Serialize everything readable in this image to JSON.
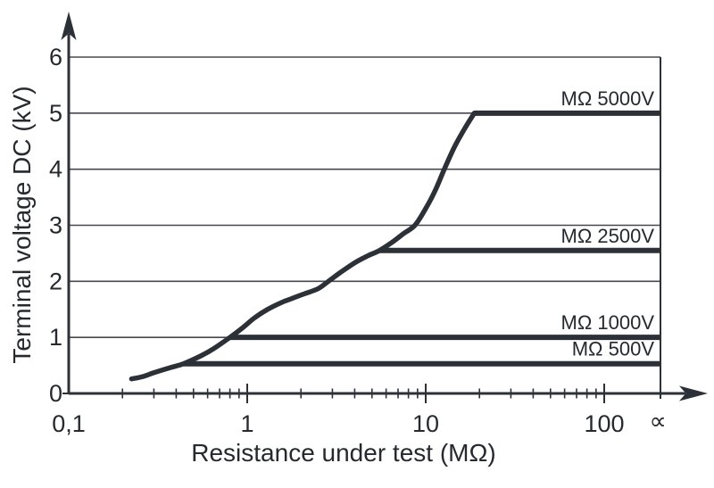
{
  "figure": {
    "background": "#ffffff"
  },
  "colors": {
    "line": "#2c3037",
    "grid": "#45484e",
    "text": "#26292e"
  },
  "chart_data": {
    "type": "line",
    "title": "",
    "xlabel": "Resistance under test (MΩ)",
    "ylabel": "Terminal voltage DC (kV)",
    "x_scale": "log",
    "xlim": [
      0.1,
      206
    ],
    "ylim": [
      0,
      6
    ],
    "grid": "horizontal",
    "legend_position": "inline-right",
    "x_ticks": [
      {
        "value": 0.1,
        "label": "0,1",
        "tick": false
      },
      {
        "value": 1,
        "label": "1",
        "tick": true
      },
      {
        "value": 10,
        "label": "10",
        "tick": true
      },
      {
        "value": 100,
        "label": "100",
        "tick": true
      },
      {
        "value": 200,
        "label": "∝",
        "tick": false
      }
    ],
    "x_minor_tick_decades": [
      0.1,
      1,
      10
    ],
    "y_ticks": [
      {
        "value": 0,
        "label": "0"
      },
      {
        "value": 1,
        "label": "1"
      },
      {
        "value": 2,
        "label": "2"
      },
      {
        "value": 3,
        "label": "3"
      },
      {
        "value": 4,
        "label": "4"
      },
      {
        "value": 5,
        "label": "5"
      },
      {
        "value": 6,
        "label": "6"
      }
    ],
    "series": [
      {
        "label": "MΩ 5000V",
        "plateau_kv": 5.0,
        "plateau_from_mohm": 18.7,
        "plateau_to": "infinity"
      },
      {
        "label": "MΩ 2500V",
        "plateau_kv": 2.55,
        "plateau_from_mohm": 5.5,
        "plateau_to": "infinity"
      },
      {
        "label": "MΩ 1000V",
        "plateau_kv": 1.0,
        "plateau_from_mohm": 0.8,
        "plateau_to": "infinity"
      },
      {
        "label": "MΩ 500V",
        "plateau_kv": 0.53,
        "plateau_from_mohm": 0.44,
        "plateau_to": "infinity"
      }
    ],
    "rising_curve": {
      "description": "Common terminal-voltage rise curve feeding the voltage-range plateaus",
      "points": [
        [
          0.225,
          0.26
        ],
        [
          0.26,
          0.3
        ],
        [
          0.3,
          0.37
        ],
        [
          0.37,
          0.46
        ],
        [
          0.44,
          0.53
        ],
        [
          0.55,
          0.67
        ],
        [
          0.65,
          0.8
        ],
        [
          0.8,
          1.0
        ],
        [
          0.95,
          1.18
        ],
        [
          1.1,
          1.35
        ],
        [
          1.3,
          1.5
        ],
        [
          1.55,
          1.62
        ],
        [
          1.8,
          1.7
        ],
        [
          2.1,
          1.78
        ],
        [
          2.5,
          1.87
        ],
        [
          2.85,
          2.0
        ],
        [
          3.3,
          2.15
        ],
        [
          4.0,
          2.33
        ],
        [
          4.7,
          2.45
        ],
        [
          5.5,
          2.55
        ],
        [
          6.5,
          2.7
        ],
        [
          7.5,
          2.85
        ],
        [
          8.7,
          3.0
        ],
        [
          10.0,
          3.3
        ],
        [
          11.3,
          3.62
        ],
        [
          12.7,
          4.0
        ],
        [
          14.5,
          4.4
        ],
        [
          16.5,
          4.72
        ],
        [
          18.7,
          5.0
        ]
      ]
    }
  }
}
